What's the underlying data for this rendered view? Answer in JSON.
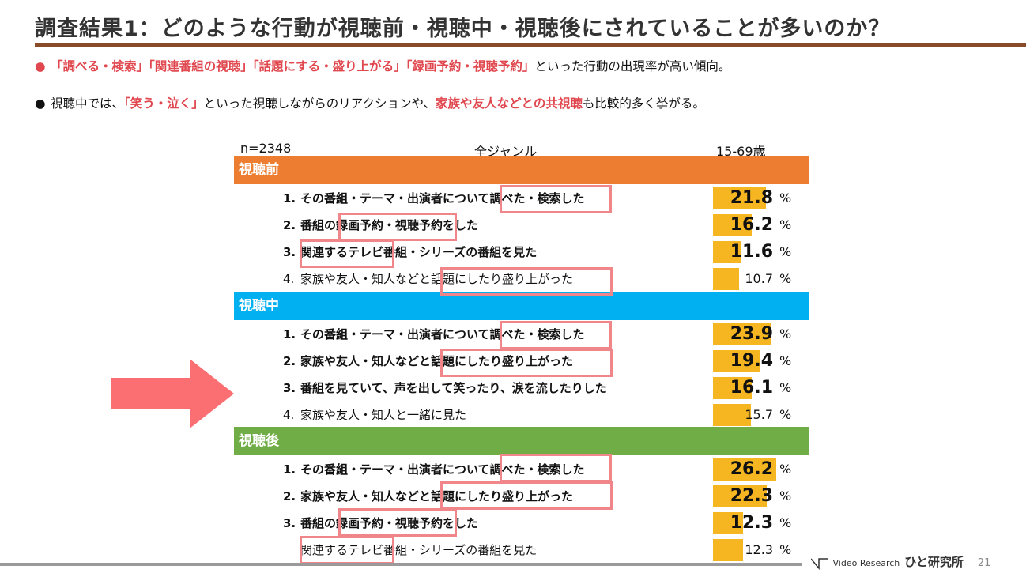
{
  "title": "調査結果1：どのような行動が視聴前・視聴中・視聴後にされていることが多いのか？",
  "bullets": {
    "b1": {
      "marker": "●",
      "p1": "「調べる・検索」「関連番組の視聴」「話題にする・盛り上がる」「録画予約・視聴予約」",
      "p2": "といった行動の出現率が高い傾向。"
    },
    "b2": {
      "marker": "●",
      "p1": "視聴中では、",
      "p2": "「笑う・泣く」",
      "p3": "といった視聴しながらのリアクションや、",
      "p4": "家族や友人などとの共視聴",
      "p5": "も比較的多く挙がる。"
    }
  },
  "table_header": {
    "n": "n=2348",
    "genre": "全ジャンル",
    "age": "15-69歳"
  },
  "colors": {
    "before": "#ed7d31",
    "during": "#00b0f0",
    "after": "#70ad47",
    "bar": "#f6b621",
    "highlight": "#f0858a",
    "arrow": "#fb6f72"
  },
  "chart_data": {
    "type": "bar",
    "unit": "%",
    "sections": [
      {
        "name": "視聴前",
        "rows": [
          {
            "rank": "1.",
            "label": "その番組・テーマ・出演者について調べた・検索した",
            "value": 21.8
          },
          {
            "rank": "2.",
            "label": "番組の録画予約・視聴予約をした",
            "value": 16.2
          },
          {
            "rank": "3.",
            "label": "関連するテレビ番組・シリーズの番組を見た",
            "value": 11.6
          },
          {
            "rank": "4.",
            "label": "家族や友人・知人などと話題にしたり盛り上がった",
            "value": 10.7
          }
        ]
      },
      {
        "name": "視聴中",
        "rows": [
          {
            "rank": "1.",
            "label": "その番組・テーマ・出演者について調べた・検索した",
            "value": 23.9
          },
          {
            "rank": "2.",
            "label": "家族や友人・知人などと話題にしたり盛り上がった",
            "value": 19.4
          },
          {
            "rank": "3.",
            "label": "番組を見ていて、声を出して笑ったり、涙を流したりした",
            "value": 16.1
          },
          {
            "rank": "4.",
            "label": "家族や友人・知人と一緒に見た",
            "value": 15.7
          }
        ]
      },
      {
        "name": "視聴後",
        "rows": [
          {
            "rank": "1.",
            "label": "その番組・テーマ・出演者について調べた・検索した",
            "value": 26.2
          },
          {
            "rank": "2.",
            "label": "家族や友人・知人などと話題にしたり盛り上がった",
            "value": 22.3
          },
          {
            "rank": "3.",
            "label": "番組の録画予約・視聴予約をした",
            "value": 12.3
          },
          {
            "rank": "",
            "label": "関連するテレビ番組・シリーズの番組を見た",
            "value": 12.3
          }
        ]
      }
    ]
  },
  "footer": {
    "company": "Video Research",
    "brand": "ひと研究所",
    "page": "21"
  }
}
